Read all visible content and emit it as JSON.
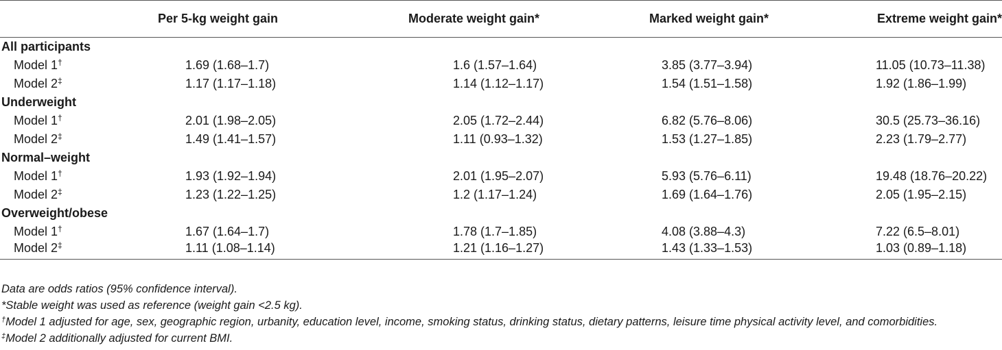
{
  "header": {
    "col0": "",
    "col1": "Per 5-kg weight gain",
    "col2": "Moderate weight gain*",
    "col3": "Marked weight gain*",
    "col4": "Extreme weight gain*"
  },
  "groups": [
    {
      "label": "All participants",
      "rows": [
        {
          "label": "Model 1",
          "sup": "†",
          "values": [
            "1.69 (1.68–1.7)",
            "1.6 (1.57–1.64)",
            "3.85 (3.77–3.94)",
            "11.05 (10.73–11.38)"
          ]
        },
        {
          "label": "Model 2",
          "sup": "‡",
          "values": [
            "1.17 (1.17–1.18)",
            "1.14 (1.12–1.17)",
            "1.54 (1.51–1.58)",
            "1.92 (1.86–1.99)"
          ]
        }
      ]
    },
    {
      "label": "Underweight",
      "rows": [
        {
          "label": "Model 1",
          "sup": "†",
          "values": [
            "2.01 (1.98–2.05)",
            "2.05 (1.72–2.44)",
            "6.82 (5.76–8.06)",
            "30.5 (25.73–36.16)"
          ]
        },
        {
          "label": "Model 2",
          "sup": "‡",
          "values": [
            "1.49 (1.41–1.57)",
            "1.11 (0.93–1.32)",
            "1.53 (1.27–1.85)",
            "2.23 (1.79–2.77)"
          ]
        }
      ]
    },
    {
      "label": "Normal–weight",
      "rows": [
        {
          "label": "Model 1",
          "sup": "†",
          "values": [
            "1.93 (1.92–1.94)",
            "2.01 (1.95–2.07)",
            "5.93 (5.76–6.11)",
            "19.48 (18.76–20.22)"
          ]
        },
        {
          "label": "Model 2",
          "sup": "‡",
          "values": [
            "1.23 (1.22–1.25)",
            "1.2 (1.17–1.24)",
            "1.69 (1.64–1.76)",
            "2.05 (1.95–2.15)"
          ]
        }
      ]
    },
    {
      "label": "Overweight/obese",
      "rows": [
        {
          "label": "Model 1",
          "sup": "†",
          "values": [
            "1.67 (1.64–1.7)",
            "1.78 (1.7–1.85)",
            "4.08 (3.88–4.3)",
            "7.22 (6.5–8.01)"
          ]
        },
        {
          "label": "Model 2",
          "sup": "‡",
          "values": [
            "1.11 (1.08–1.14)",
            "1.21 (1.16–1.27)",
            "1.43 (1.33–1.53)",
            "1.03 (0.89–1.18)"
          ]
        }
      ]
    }
  ],
  "notes": {
    "line1": "Data are odds ratios (95% confidence interval).",
    "line2": "*Stable weight was used as reference (weight gain <2.5 kg).",
    "line3_sup": "†",
    "line3": "Model 1 adjusted for age, sex, geographic region, urbanity, education level, income, smoking status, drinking status, dietary patterns, leisure time physical activity level, and comorbidities.",
    "line4_sup": "‡",
    "line4": "Model 2 additionally adjusted for current BMI."
  }
}
